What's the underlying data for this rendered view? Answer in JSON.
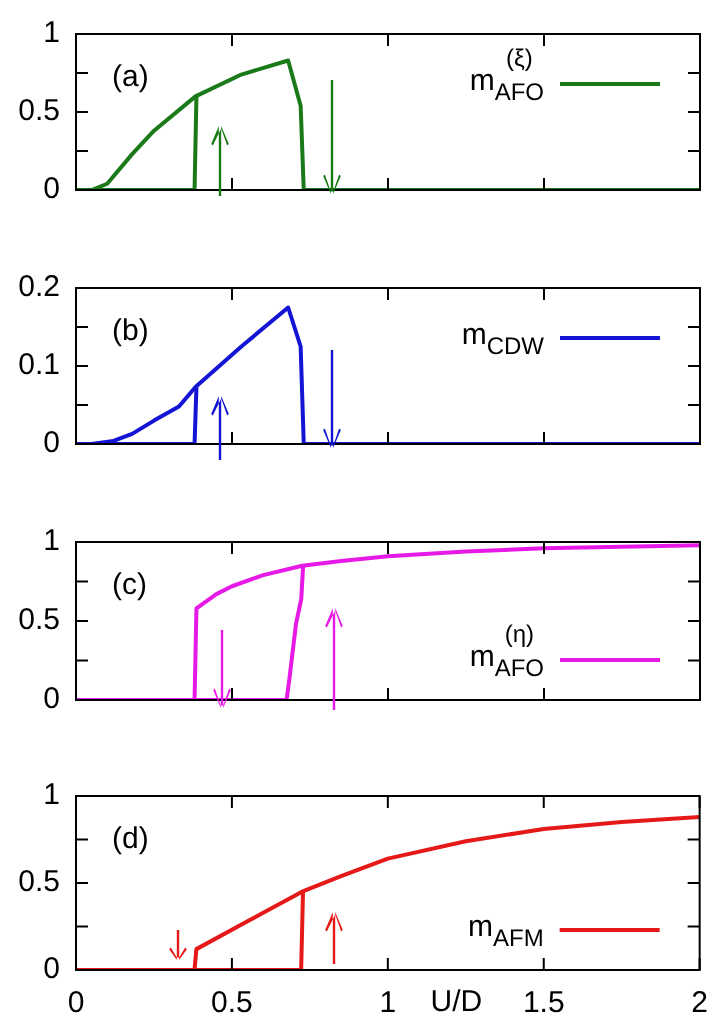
{
  "chart_data": [
    {
      "type": "line",
      "annotations": [
        "(a)"
      ],
      "xlim": [
        0,
        2
      ],
      "xticks": [
        0,
        0.5,
        1,
        1.5,
        2
      ],
      "ylim": [
        0,
        1
      ],
      "yticks": [
        0,
        {
          "value": 0.25,
          "label": null
        },
        0.5,
        {
          "value": 0.75,
          "label": null
        },
        1
      ],
      "tick_labels": "y",
      "legend": "top right",
      "marker": "none",
      "series": [
        {
          "name": "m$_{AFO}$$^{(ξ)}$",
          "color": "#1a7a1a",
          "x": [
            0,
            0.05,
            0.1,
            0.18,
            0.25,
            0.383,
            0.53,
            0.68,
            0.72,
            0.73,
            2
          ],
          "values": [
            0,
            0,
            0.04,
            0.23,
            0.38,
            0.6,
            0.74,
            0.83,
            0.54,
            0,
            0
          ]
        },
        {
          "color": "#1a7a1a",
          "x": [
            0,
            0.38,
            0.386
          ],
          "values": [
            0,
            0,
            0.6
          ]
        }
      ]
    },
    {
      "type": "line",
      "annotations": [
        "(b)"
      ],
      "xlim": [
        0,
        2
      ],
      "xticks": [
        0,
        0.5,
        1,
        1.5,
        2
      ],
      "ylim": [
        0,
        0.2
      ],
      "yticks": [
        0,
        {
          "value": 0.05,
          "label": null
        },
        0.1,
        {
          "value": 0.15,
          "label": null
        },
        0.2
      ],
      "tick_labels": "y",
      "legend": "top right",
      "marker": "none",
      "series": [
        {
          "name": "m$_{CDW}$",
          "color": "#1414d4",
          "x": [
            0,
            0.05,
            0.12,
            0.18,
            0.25,
            0.33,
            0.383,
            0.53,
            0.68,
            0.72,
            0.73,
            2
          ],
          "values": [
            0,
            0,
            0.004,
            0.013,
            0.03,
            0.048,
            0.073,
            0.125,
            0.175,
            0.125,
            0,
            0
          ]
        },
        {
          "color": "#1414d4",
          "x": [
            0,
            0.38,
            0.386
          ],
          "values": [
            0,
            0,
            0.073
          ]
        }
      ]
    },
    {
      "type": "line",
      "annotations": [
        "(c)"
      ],
      "xlim": [
        0,
        2
      ],
      "xticks": [
        0,
        0.5,
        1,
        1.5,
        2
      ],
      "ylim": [
        0,
        1
      ],
      "yticks": [
        0,
        {
          "value": 0.25,
          "label": null
        },
        0.5,
        {
          "value": 0.75,
          "label": null
        },
        1
      ],
      "tick_labels": "y",
      "legend": "bottom right",
      "marker": "none",
      "series": [
        {
          "name": "m$_{AFO}$$^{(η)}$",
          "color": "#e619e6",
          "x": [
            0,
            0.38,
            0.386,
            0.45,
            0.5,
            0.6,
            0.725,
            0.85,
            1,
            1.25,
            1.5,
            1.75,
            2
          ],
          "values": [
            0,
            0,
            0.58,
            0.67,
            0.72,
            0.79,
            0.85,
            0.88,
            0.91,
            0.94,
            0.96,
            0.97,
            0.98
          ]
        },
        {
          "color": "#e619e6",
          "x": [
            0.386,
            0.675,
            0.685,
            0.705,
            0.722,
            0.728
          ],
          "values": [
            0,
            0,
            0.15,
            0.48,
            0.64,
            0.85
          ]
        }
      ]
    },
    {
      "type": "line",
      "annotations": [
        "(d)"
      ],
      "xlabel": "U/D",
      "xlim": [
        0,
        2
      ],
      "xticks": [
        0,
        0.5,
        1,
        1.5,
        2
      ],
      "ylim": [
        0,
        1
      ],
      "yticks": [
        0,
        {
          "value": 0.25,
          "label": null
        },
        0.5,
        {
          "value": 0.75,
          "label": null
        },
        1
      ],
      "legend": "bottom right",
      "marker": "none",
      "series": [
        {
          "name": "m$_{AFM}$",
          "color": "#e61919",
          "x": [
            0,
            0.38,
            0.386,
            0.55,
            0.725,
            0.85,
            1,
            1.25,
            1.5,
            1.75,
            2
          ],
          "values": [
            0,
            0,
            0.12,
            0.28,
            0.45,
            0.54,
            0.64,
            0.74,
            0.81,
            0.85,
            0.88
          ]
        },
        {
          "color": "#e61919",
          "x": [
            0.386,
            0.722,
            0.728
          ],
          "values": [
            0,
            0,
            0.45
          ]
        }
      ]
    }
  ]
}
